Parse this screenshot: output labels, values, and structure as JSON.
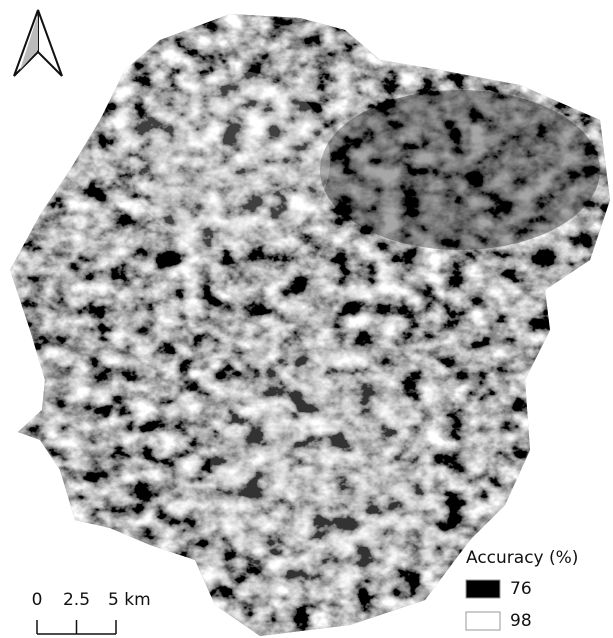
{
  "legend": {
    "title": "Accuracy (%)",
    "items": [
      {
        "value": 76,
        "color": "#000000"
      },
      {
        "value": 98,
        "color": "#ffffff"
      }
    ]
  },
  "scale_bar": {
    "ticks": [
      0,
      2.5,
      {
        "value": 5,
        "label": "5 km"
      }
    ]
  }
}
